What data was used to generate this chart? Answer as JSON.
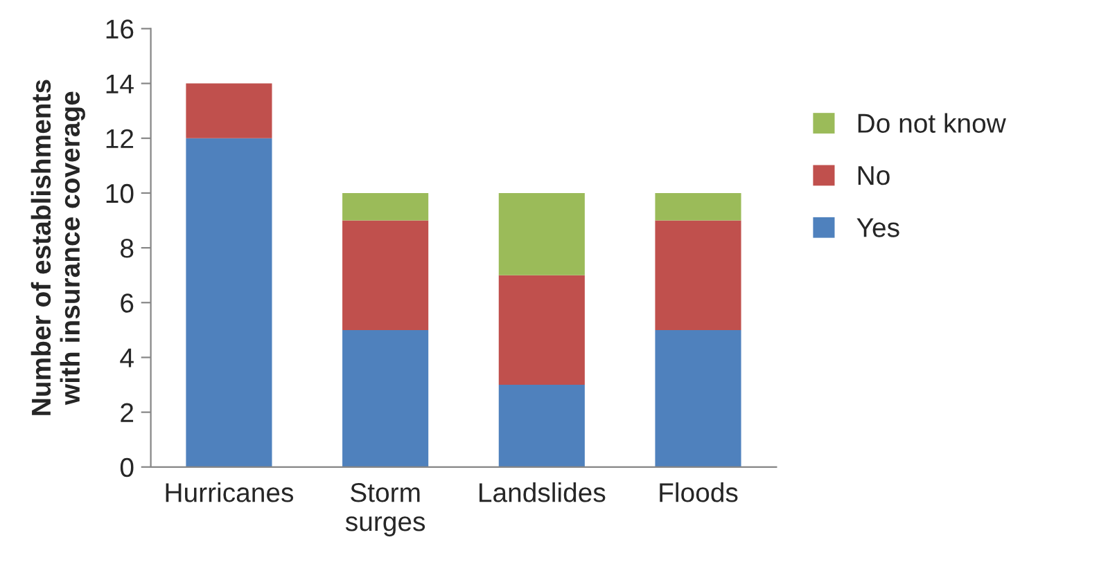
{
  "chart_data": {
    "type": "bar",
    "stacked": true,
    "ylabel": "Number of establishments\nwith insurance coverage",
    "categories": [
      "Hurricanes",
      "Storm\nsurges",
      "Landslides",
      "Floods"
    ],
    "series": [
      {
        "name": "Yes",
        "color": "#4f81bd",
        "values": [
          12,
          5,
          3,
          5
        ]
      },
      {
        "name": "No",
        "color": "#c0504d",
        "values": [
          2,
          4,
          4,
          4
        ]
      },
      {
        "name": "Do not know",
        "color": "#9bbb59",
        "values": [
          0,
          1,
          3,
          1
        ]
      }
    ],
    "ylim": [
      0,
      16
    ],
    "yticks": [
      0,
      2,
      4,
      6,
      8,
      10,
      12,
      14,
      16
    ],
    "grid": false,
    "legend": "right"
  }
}
